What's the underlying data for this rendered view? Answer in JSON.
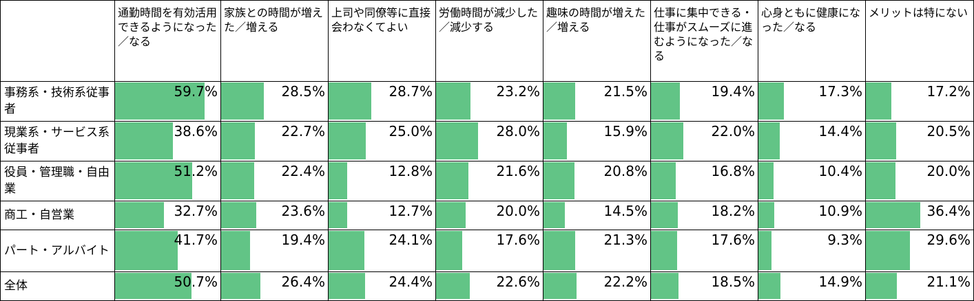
{
  "chart_data": {
    "type": "table",
    "unit_suffix": "%",
    "bar_color": "#62c486",
    "columns": [
      "通勤時間を有効活用できるようになった／なる",
      "家族との時間が増えた／増える",
      "上司や同僚等に直接会わなくてよい",
      "労働時間が減少した／減少する",
      "趣味の時間が増えた／増える",
      "仕事に集中できる・仕事がスムーズに進むようになった／なる",
      "心身ともに健康になった／なる",
      "メリットは特にない"
    ],
    "rows": [
      {
        "label": "事務系・技術系従事者",
        "values": [
          59.7,
          28.5,
          28.7,
          23.2,
          21.5,
          19.4,
          17.3,
          17.2
        ]
      },
      {
        "label": "現業系・サービス系従事者",
        "values": [
          38.6,
          22.7,
          25.0,
          28.0,
          15.9,
          22.0,
          14.4,
          20.5
        ]
      },
      {
        "label": "役員・管理職・自由業",
        "values": [
          51.2,
          22.4,
          12.8,
          21.6,
          20.8,
          16.8,
          10.4,
          20.0
        ]
      },
      {
        "label": "商工・自営業",
        "values": [
          32.7,
          23.6,
          12.7,
          20.0,
          14.5,
          18.2,
          10.9,
          36.4
        ]
      },
      {
        "label": "パート・アルバイト",
        "values": [
          41.7,
          19.4,
          24.1,
          17.6,
          21.3,
          17.6,
          9.3,
          29.6
        ]
      },
      {
        "label": "全体",
        "values": [
          50.7,
          26.4,
          24.4,
          22.6,
          22.2,
          18.5,
          14.9,
          21.1
        ]
      }
    ]
  }
}
